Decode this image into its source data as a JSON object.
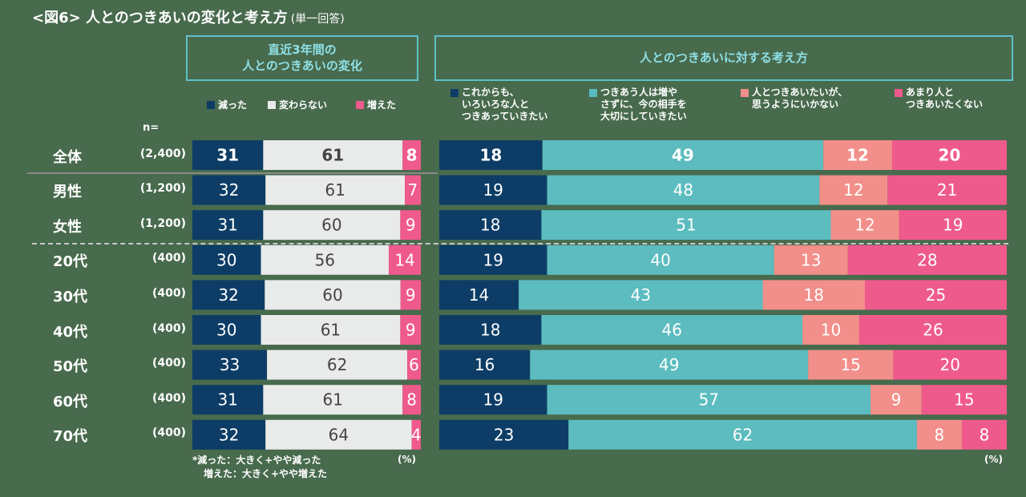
{
  "title": "<図6> 人とのつきあいの変化と考え方",
  "subtitle": "(単一回答)",
  "header_left": "直近3年間の\n人とのつきあいの変化",
  "header_right": "人とのつきあいに対する考え方",
  "n_label": "n=",
  "legend_left": [
    {
      "label": "減った",
      "color": "#0d3d66"
    },
    {
      "label": "変わらない",
      "color": "#e9eaea"
    },
    {
      "label": "増えた",
      "color": "#ef5a8c"
    }
  ],
  "legend_right": [
    {
      "label": "これからも、\nいろいろな人と\nつきあっていきたい",
      "color": "#0d3d66"
    },
    {
      "label": "つきあう人は増や\nさずに、今の相手を\n大切にしていきたい",
      "color": "#5cbcbf"
    },
    {
      "label": "人とつきあいたいが、\n思うようにいかない",
      "color": "#f28f8a"
    },
    {
      "label": "あまり人と\nつきあいたくない",
      "color": "#ef5a8c"
    }
  ],
  "rows": [
    {
      "label": "全体",
      "n": "(2,400)"
    },
    {
      "label": "男性",
      "n": "(1,200)"
    },
    {
      "label": "女性",
      "n": "(1,200)"
    },
    {
      "label": "20代",
      "n": "(400)"
    },
    {
      "label": "30代",
      "n": "(400)"
    },
    {
      "label": "40代",
      "n": "(400)"
    },
    {
      "label": "50代",
      "n": "(400)"
    },
    {
      "label": "60代",
      "n": "(400)"
    },
    {
      "label": "70代",
      "n": "(400)"
    }
  ],
  "footnote_line1": "*減った：大きく+やや減った",
  "footnote_line2": "増えた：大きく+やや増えた",
  "unit_left": "(%)",
  "unit_right": "(%)",
  "chart_data": [
    {
      "type": "bar",
      "orientation": "horizontal",
      "stacked": true,
      "title": "直近3年間の人とのつきあいの変化",
      "categories": [
        "全体",
        "男性",
        "女性",
        "20代",
        "30代",
        "40代",
        "50代",
        "60代",
        "70代"
      ],
      "series": [
        {
          "name": "減った",
          "color": "#0d3d66",
          "values": [
            31,
            32,
            31,
            30,
            32,
            30,
            33,
            31,
            32
          ]
        },
        {
          "name": "変わらない",
          "color": "#e9eaea",
          "values": [
            61,
            61,
            60,
            56,
            60,
            61,
            62,
            61,
            64
          ]
        },
        {
          "name": "増えた",
          "color": "#ef5a8c",
          "values": [
            8,
            7,
            9,
            14,
            9,
            9,
            6,
            8,
            4
          ]
        }
      ],
      "unit": "%"
    },
    {
      "type": "bar",
      "orientation": "horizontal",
      "stacked": true,
      "title": "人とのつきあいに対する考え方",
      "categories": [
        "全体",
        "男性",
        "女性",
        "20代",
        "30代",
        "40代",
        "50代",
        "60代",
        "70代"
      ],
      "series": [
        {
          "name": "これからも、いろいろな人とつきあっていきたい",
          "color": "#0d3d66",
          "values": [
            18,
            19,
            18,
            19,
            14,
            18,
            16,
            19,
            23
          ]
        },
        {
          "name": "つきあう人は増やさずに、今の相手を大切にしていきたい",
          "color": "#5cbcbf",
          "values": [
            49,
            48,
            51,
            40,
            43,
            46,
            49,
            57,
            62
          ]
        },
        {
          "name": "人とつきあいたいが、思うようにいかない",
          "color": "#f28f8a",
          "values": [
            12,
            12,
            12,
            13,
            18,
            10,
            15,
            9,
            8
          ]
        },
        {
          "name": "あまり人とつきあいたくない",
          "color": "#ef5a8c",
          "values": [
            20,
            21,
            19,
            28,
            25,
            26,
            20,
            15,
            8
          ]
        }
      ],
      "unit": "%"
    }
  ]
}
